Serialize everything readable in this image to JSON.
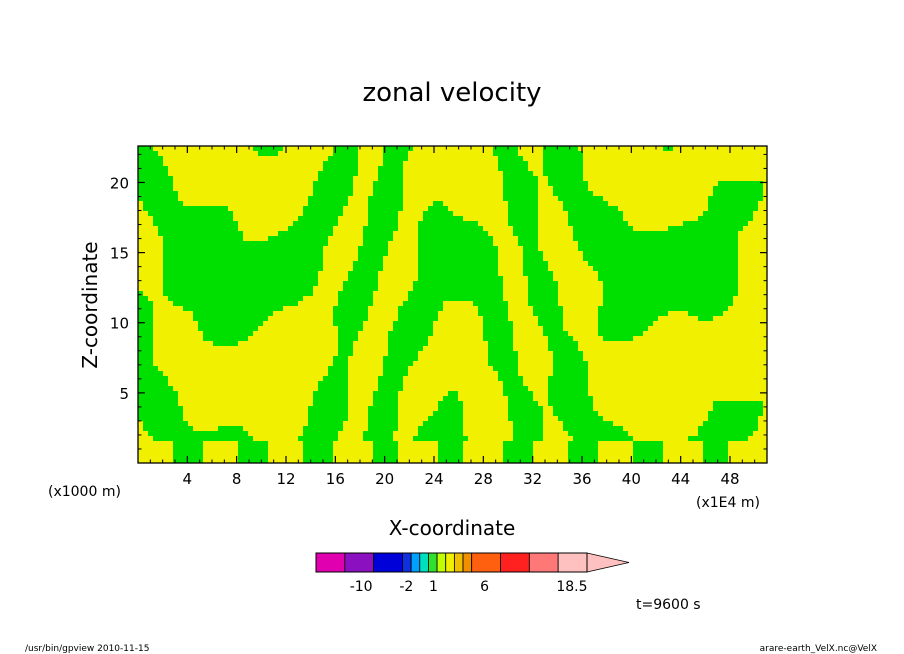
{
  "chart_data": {
    "type": "heatmap",
    "title": "zonal velocity",
    "xlabel": "X-coordinate",
    "ylabel": "Z-coordinate",
    "x_units_note": "(x1E4 m)",
    "y_units_note": "(x1000 m)",
    "x_ticks": [
      4,
      8,
      12,
      16,
      20,
      24,
      28,
      32,
      36,
      40,
      44,
      48
    ],
    "y_ticks": [
      5,
      10,
      15,
      20
    ],
    "xlim": [
      0,
      51
    ],
    "ylim": [
      0,
      22.6
    ],
    "grid": false,
    "time_label": "t=9600 s",
    "field_colors": {
      "positive": "#f0f000",
      "negative": "#00e000",
      "contour": "#000000"
    },
    "colorbar": {
      "colors": [
        "#e000b0",
        "#8a10c0",
        "#0000d8",
        "#1030e0",
        "#00a0ff",
        "#00e0c0",
        "#30e030",
        "#c0ff00",
        "#f0f000",
        "#f0c000",
        "#f09000",
        "#ff6010",
        "#ff2020",
        "#ff7878",
        "#ffc0c0"
      ],
      "widths": [
        1,
        1,
        1,
        0.3,
        0.3,
        0.3,
        0.3,
        0.3,
        0.3,
        0.3,
        0.3,
        1,
        1,
        1,
        1
      ],
      "labels": [
        "-10",
        "-2",
        "1",
        "6",
        "18.5"
      ],
      "label_positions": [
        1.5,
        3,
        3.9,
        5.6,
        8.5
      ],
      "arrow_color": "#ffc0c0"
    }
  },
  "footer": {
    "left": "/usr/bin/gpview   2010-11-15",
    "right": "arare-earth_VelX.nc@VelX"
  }
}
